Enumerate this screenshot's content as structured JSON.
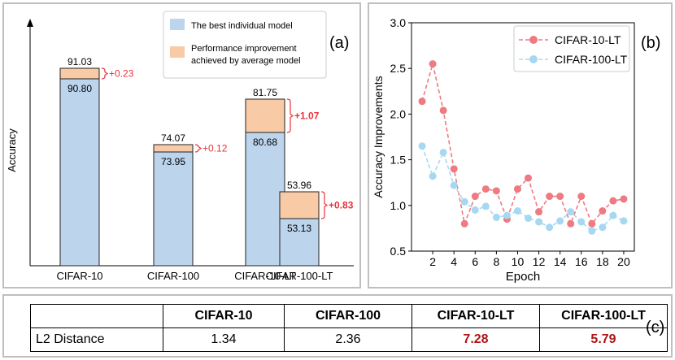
{
  "panel_labels": {
    "a": "(a)",
    "b": "(b)",
    "c": "(c)"
  },
  "colors": {
    "base": "#bcd4ec",
    "improvement": "#f8cba6",
    "red": "#e8323c",
    "line_lt": "#ee7a82",
    "line_lt100": "#a6d8f2",
    "highlight": "#b01515"
  },
  "chart_data": [
    {
      "type": "bar",
      "title": "",
      "ylabel": "Accuracy",
      "xlabel": "",
      "categories": [
        "CIFAR-10",
        "CIFAR-100",
        "CIFAR-10-LT",
        "CIFAR-100-LT"
      ],
      "series": [
        {
          "name": "The best individual model",
          "values": [
            90.8,
            73.95,
            80.68,
            53.13
          ],
          "labels": [
            "90.80",
            "73.95",
            "80.68",
            "53.13"
          ]
        },
        {
          "name": "Performance improvement achieved by average model",
          "values": [
            0.23,
            0.12,
            1.07,
            0.83
          ],
          "totals": [
            "91.03",
            "74.07",
            "81.75",
            "53.96"
          ],
          "labels": [
            "+0.23",
            "+0.12",
            "+1.07",
            "+0.83"
          ],
          "bold": [
            false,
            false,
            true,
            true
          ]
        }
      ],
      "legend": {
        "position": "top-right",
        "entries": [
          "The best individual model",
          "Performance improvement achieved by average model"
        ],
        "entry2_lines": [
          "Performance improvement",
          "achieved by average model"
        ]
      }
    },
    {
      "type": "line",
      "title": "",
      "xlabel": "Epoch",
      "ylabel": "Accuracy Improvements",
      "x": [
        1,
        2,
        3,
        4,
        5,
        6,
        7,
        8,
        9,
        10,
        11,
        12,
        13,
        14,
        15,
        16,
        17,
        18,
        19,
        20
      ],
      "xticks": [
        2,
        4,
        6,
        8,
        10,
        12,
        14,
        16,
        18,
        20
      ],
      "yticks": [
        0.5,
        1.0,
        1.5,
        2.0,
        2.5,
        3.0
      ],
      "ytick_labels": [
        "0.5",
        "1.0",
        "1.5",
        "2.0",
        "2.5",
        "3.0"
      ],
      "xlim": [
        0,
        21
      ],
      "ylim": [
        0.5,
        3.0
      ],
      "series": [
        {
          "name": "CIFAR-10-LT",
          "values": [
            2.14,
            2.55,
            2.04,
            1.4,
            0.8,
            1.1,
            1.18,
            1.16,
            0.85,
            1.18,
            1.3,
            0.93,
            1.1,
            1.1,
            0.8,
            1.1,
            0.8,
            0.94,
            1.05,
            1.07
          ]
        },
        {
          "name": "CIFAR-100-LT",
          "values": [
            1.65,
            1.32,
            1.58,
            1.22,
            1.04,
            0.95,
            0.99,
            0.87,
            0.89,
            0.94,
            0.86,
            0.82,
            0.76,
            0.83,
            0.93,
            0.82,
            0.72,
            0.76,
            0.89,
            0.83
          ]
        }
      ],
      "legend": {
        "position": "top-right"
      }
    },
    {
      "type": "table",
      "columns": [
        "",
        "CIFAR-10",
        "CIFAR-100",
        "CIFAR-10-LT",
        "CIFAR-100-LT"
      ],
      "rows": [
        {
          "label": "L2 Distance",
          "values": [
            "1.34",
            "2.36",
            "7.28",
            "5.79"
          ],
          "highlight": [
            false,
            false,
            true,
            true
          ]
        }
      ]
    }
  ]
}
